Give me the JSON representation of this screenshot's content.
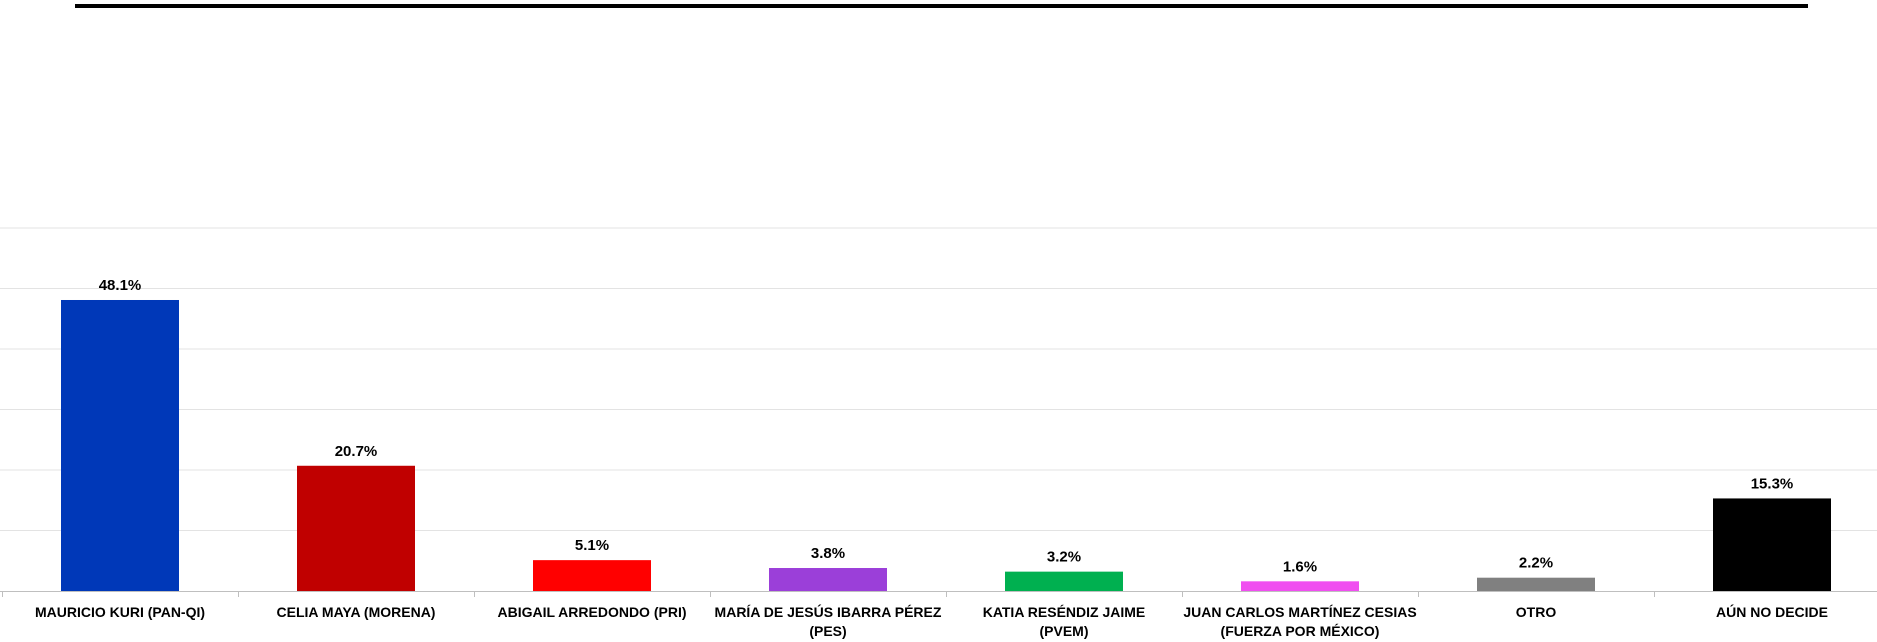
{
  "chart_data": {
    "type": "bar",
    "title": "",
    "xlabel": "",
    "ylabel": "",
    "ylim": [
      0,
      60
    ],
    "grid": true,
    "legend": "none",
    "categories": [
      [
        "MAURICIO KURI (PAN-QI)"
      ],
      [
        "CELIA MAYA  (MORENA)"
      ],
      [
        "ABIGAIL ARREDONDO (PRI)"
      ],
      [
        "MARÍA DE JESÚS IBARRA PÉREZ",
        "(PES)"
      ],
      [
        "KATIA RESÉNDIZ JAIME",
        "(PVEM)"
      ],
      [
        "JUAN CARLOS MARTÍNEZ CESIAS",
        "(FUERZA POR MÉXICO)"
      ],
      [
        "OTRO"
      ],
      [
        "AÚN NO DECIDE"
      ]
    ],
    "values": [
      48.1,
      20.7,
      5.1,
      3.8,
      3.2,
      1.6,
      2.2,
      15.3
    ],
    "data_labels": [
      "48.1%",
      "20.7%",
      "5.1%",
      "3.8%",
      "3.2%",
      "1.6%",
      "2.2%",
      "15.3%"
    ],
    "colors": [
      "#0038B8",
      "#C00000",
      "#FF0000",
      "#9B3FD9",
      "#00B050",
      "#F04EF0",
      "#808080",
      "#000000"
    ]
  }
}
